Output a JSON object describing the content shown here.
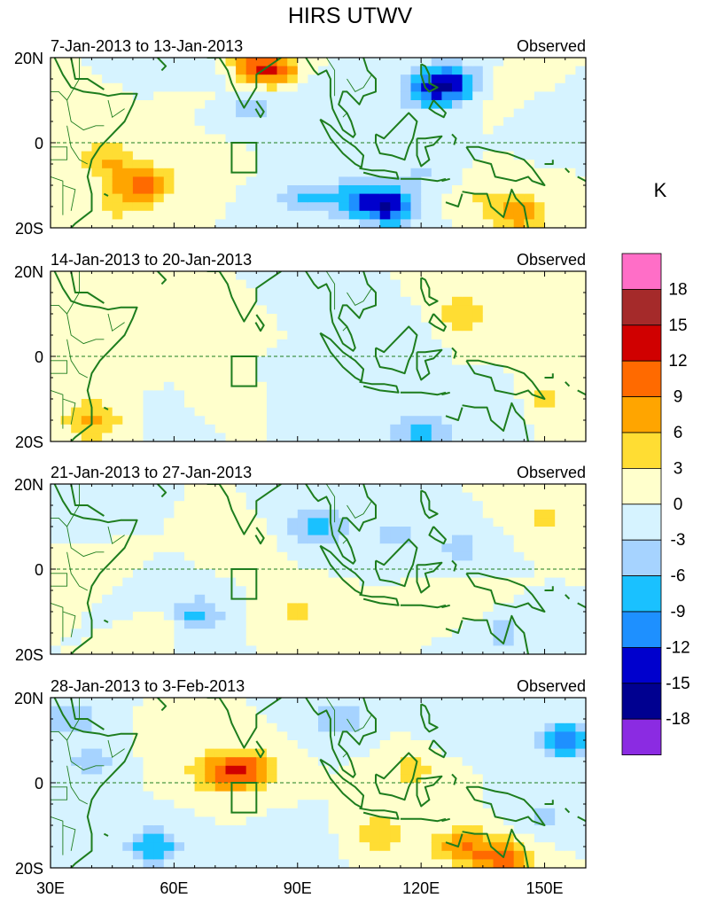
{
  "chart_data": {
    "type": "heatmap",
    "title": "HIRS UTWV",
    "colorbar": {
      "unit": "K",
      "labels": [
        "18",
        "15",
        "12",
        "9",
        "6",
        "3",
        "0",
        "-3",
        "-6",
        "-9",
        "-12",
        "-15",
        "-18"
      ],
      "colors": [
        "#ff6ec7",
        "#a52a2a",
        "#d00000",
        "#ff6a00",
        "#ffa500",
        "#ffdd33",
        "#ffffcc",
        "#d6f3ff",
        "#a6d3ff",
        "#1ac1ff",
        "#1e90ff",
        "#0000cd",
        "#000090",
        "#8b2be2"
      ]
    },
    "x_range": [
      30,
      160
    ],
    "y_range": [
      -20,
      20
    ],
    "x_ticks": [
      {
        "value": 30,
        "label": "30E"
      },
      {
        "value": 60,
        "label": "60E"
      },
      {
        "value": 90,
        "label": "90E"
      },
      {
        "value": 120,
        "label": "120E"
      },
      {
        "value": 150,
        "label": "150E"
      }
    ],
    "y_ticks": [
      {
        "value": 20,
        "label": "20N"
      },
      {
        "value": 0,
        "label": "0"
      },
      {
        "value": -20,
        "label": "20S"
      }
    ],
    "box_region": {
      "lon": [
        74,
        80
      ],
      "lat": [
        -7,
        0
      ]
    },
    "panels": [
      {
        "period": "7-Jan-2013 to 13-Jan-2013",
        "label": "Observed",
        "anomalies": [
          {
            "lon": 43,
            "lat": -4,
            "value": 6
          },
          {
            "lon": 52,
            "lat": -10,
            "value": 10
          },
          {
            "lon": 45,
            "lat": -16,
            "value": 3
          },
          {
            "lon": 85,
            "lat": 17,
            "value": 6
          },
          {
            "lon": 80,
            "lat": 18,
            "value": 9
          },
          {
            "lon": 73,
            "lat": 12,
            "value": 3
          },
          {
            "lon": 72,
            "lat": 15,
            "value": -3
          },
          {
            "lon": 78,
            "lat": 9,
            "value": -6
          },
          {
            "lon": 97,
            "lat": 12,
            "value": -3
          },
          {
            "lon": 127,
            "lat": 14,
            "value": -13
          },
          {
            "lon": 121,
            "lat": 12,
            "value": -7
          },
          {
            "lon": 112,
            "lat": -15,
            "value": -14
          },
          {
            "lon": 104,
            "lat": -13,
            "value": -7
          },
          {
            "lon": 120,
            "lat": -7,
            "value": -3
          },
          {
            "lon": 92,
            "lat": -13,
            "value": -6
          },
          {
            "lon": 144,
            "lat": -17,
            "value": 8
          },
          {
            "lon": 136,
            "lat": -13,
            "value": 3
          },
          {
            "lon": 65,
            "lat": -5,
            "value": 2
          },
          {
            "lon": 152,
            "lat": 5,
            "value": -3
          },
          {
            "lon": 140,
            "lat": 12,
            "value": 2
          }
        ]
      },
      {
        "period": "14-Jan-2013 to 20-Jan-2013",
        "label": "Observed",
        "anomalies": [
          {
            "lon": 40,
            "lat": -15,
            "value": 7
          },
          {
            "lon": 45,
            "lat": -4,
            "value": 2
          },
          {
            "lon": 55,
            "lat": 5,
            "value": 2
          },
          {
            "lon": 75,
            "lat": 5,
            "value": 3
          },
          {
            "lon": 72,
            "lat": -10,
            "value": 3
          },
          {
            "lon": 130,
            "lat": 10,
            "value": 5
          },
          {
            "lon": 150,
            "lat": 5,
            "value": 3
          },
          {
            "lon": 150,
            "lat": -10,
            "value": 4
          },
          {
            "lon": 95,
            "lat": 12,
            "value": -3
          },
          {
            "lon": 115,
            "lat": 5,
            "value": -3
          },
          {
            "lon": 120,
            "lat": -18,
            "value": -7
          },
          {
            "lon": 90,
            "lat": -3,
            "value": -2
          },
          {
            "lon": 60,
            "lat": -15,
            "value": -2
          },
          {
            "lon": 140,
            "lat": -12,
            "value": -3
          },
          {
            "lon": 95,
            "lat": -12,
            "value": -3
          }
        ]
      },
      {
        "period": "21-Jan-2013 to 27-Jan-2013",
        "label": "Observed",
        "anomalies": [
          {
            "lon": 95,
            "lat": 10,
            "value": -8
          },
          {
            "lon": 113,
            "lat": 8,
            "value": -4
          },
          {
            "lon": 130,
            "lat": 5,
            "value": -4
          },
          {
            "lon": 65,
            "lat": -11,
            "value": -7
          },
          {
            "lon": 50,
            "lat": -8,
            "value": -3
          },
          {
            "lon": 40,
            "lat": -3,
            "value": 3
          },
          {
            "lon": 55,
            "lat": -12,
            "value": 4
          },
          {
            "lon": 90,
            "lat": -10,
            "value": 4
          },
          {
            "lon": 130,
            "lat": -7,
            "value": 3
          },
          {
            "lon": 150,
            "lat": 12,
            "value": 4
          },
          {
            "lon": 140,
            "lat": -15,
            "value": -4
          },
          {
            "lon": 80,
            "lat": 5,
            "value": 1
          },
          {
            "lon": 35,
            "lat": 15,
            "value": -3
          }
        ]
      },
      {
        "period": "28-Jan-2013 to 3-Feb-2013",
        "label": "Observed",
        "anomalies": [
          {
            "lon": 77,
            "lat": 3,
            "value": 11
          },
          {
            "lon": 70,
            "lat": 2,
            "value": 6
          },
          {
            "lon": 130,
            "lat": -15,
            "value": 8
          },
          {
            "lon": 140,
            "lat": -18,
            "value": 10
          },
          {
            "lon": 110,
            "lat": -12,
            "value": 5
          },
          {
            "lon": 118,
            "lat": 3,
            "value": 4
          },
          {
            "lon": 55,
            "lat": -15,
            "value": -8
          },
          {
            "lon": 40,
            "lat": 5,
            "value": -4
          },
          {
            "lon": 35,
            "lat": 15,
            "value": -5
          },
          {
            "lon": 155,
            "lat": 10,
            "value": -10
          },
          {
            "lon": 100,
            "lat": 15,
            "value": -6
          },
          {
            "lon": 90,
            "lat": -15,
            "value": -3
          },
          {
            "lon": 150,
            "lat": -8,
            "value": -4
          },
          {
            "lon": 130,
            "lat": 12,
            "value": -3
          },
          {
            "lon": 60,
            "lat": 10,
            "value": 2
          }
        ]
      }
    ]
  }
}
